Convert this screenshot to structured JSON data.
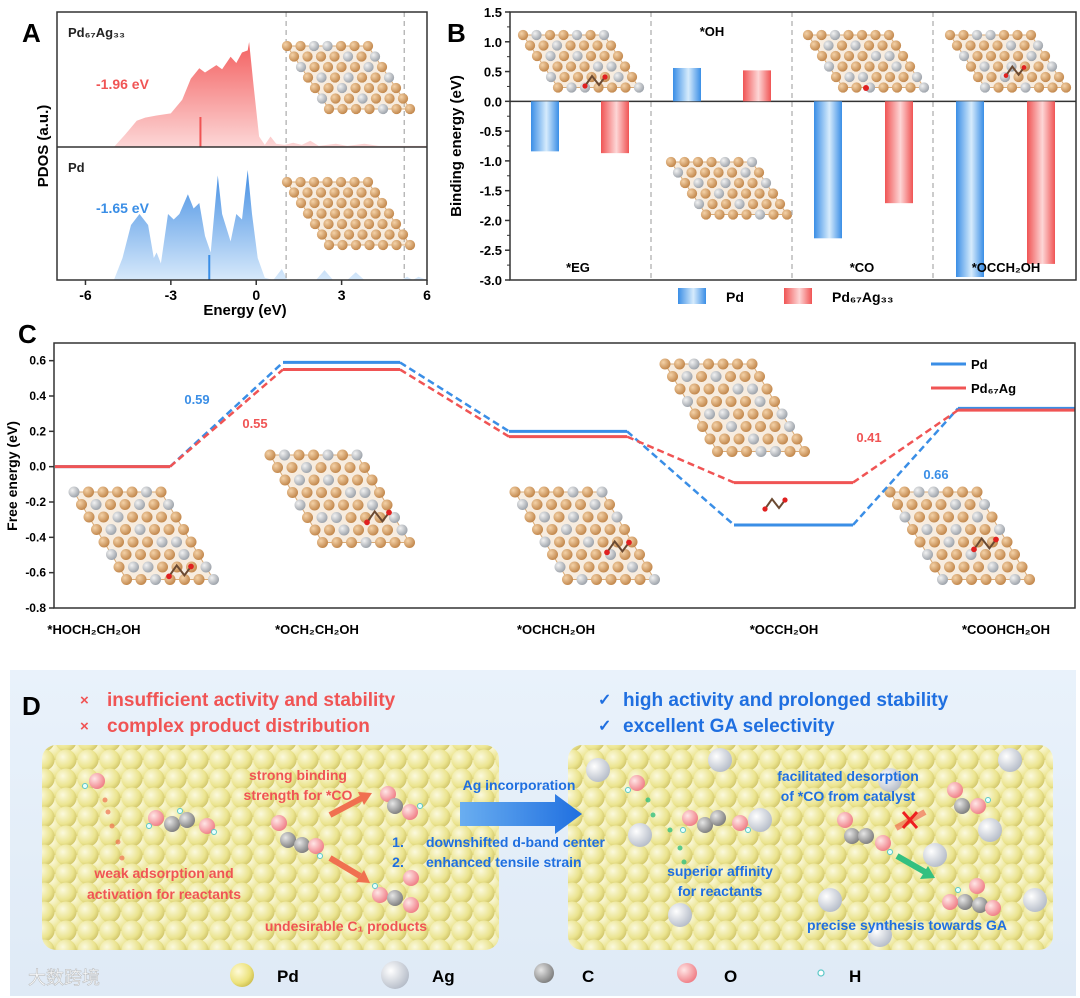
{
  "panel_labels": {
    "a": "A",
    "b": "B",
    "c": "C",
    "d": "D"
  },
  "chart_data": [
    {
      "panel": "A",
      "type": "area",
      "xlabel": "Energy (eV)",
      "ylabel": "PDOS (a.u.)",
      "xlim": [
        -7,
        6
      ],
      "xticks": [
        "-6",
        "-3",
        "0",
        "3",
        "6"
      ],
      "xtick_values": [
        -6,
        -3,
        0,
        3,
        6
      ],
      "dashed_lines": [
        1.05,
        5.2
      ],
      "series": [
        {
          "name": "Pd₆₇Ag₃₃",
          "color": "#f05454",
          "d_band_center": -1.96,
          "d_band_label": "-1.96 eV",
          "points": [
            [
              -5,
              0
            ],
            [
              -4.6,
              0.12
            ],
            [
              -4.2,
              0.25
            ],
            [
              -3.9,
              0.28
            ],
            [
              -3.5,
              0.3
            ],
            [
              -3,
              0.32
            ],
            [
              -2.6,
              0.45
            ],
            [
              -2.3,
              0.65
            ],
            [
              -2,
              0.75
            ],
            [
              -1.8,
              0.71
            ],
            [
              -1.4,
              0.78
            ],
            [
              -1.2,
              0.74
            ],
            [
              -0.9,
              0.86
            ],
            [
              -0.7,
              0.8
            ],
            [
              -0.5,
              0.9
            ],
            [
              -0.3,
              0.92
            ],
            [
              -0.25,
              1.0
            ],
            [
              -0.1,
              0.6
            ],
            [
              0.1,
              0.1
            ],
            [
              0.3,
              0.02
            ],
            [
              0.5,
              0.1
            ],
            [
              0.7,
              0.03
            ],
            [
              1.0,
              0.02
            ],
            [
              1.3,
              0.04
            ],
            [
              1.6,
              0.02
            ],
            [
              1.9,
              0.06
            ],
            [
              2.2,
              0.01
            ],
            [
              2.8,
              0.03
            ],
            [
              3.2,
              0.01
            ],
            [
              3.8,
              0.03
            ],
            [
              4.3,
              0.01
            ],
            [
              6,
              0.01
            ]
          ]
        },
        {
          "name": "Pd",
          "color": "#3a8ee6",
          "d_band_center": -1.65,
          "d_band_label": "-1.65 eV",
          "points": [
            [
              -5,
              0
            ],
            [
              -4.7,
              0.2
            ],
            [
              -4.4,
              0.5
            ],
            [
              -4.1,
              0.6
            ],
            [
              -3.8,
              0.5
            ],
            [
              -3.6,
              0.2
            ],
            [
              -3.5,
              0.25
            ],
            [
              -3.35,
              0.15
            ],
            [
              -3.1,
              0.6
            ],
            [
              -2.9,
              0.55
            ],
            [
              -2.7,
              0.6
            ],
            [
              -2.4,
              0.78
            ],
            [
              -2.2,
              0.65
            ],
            [
              -2.0,
              0.7
            ],
            [
              -1.8,
              0.4
            ],
            [
              -1.6,
              0.25
            ],
            [
              -1.35,
              0.95
            ],
            [
              -1.2,
              0.6
            ],
            [
              -0.9,
              0.35
            ],
            [
              -0.7,
              0.6
            ],
            [
              -0.5,
              0.55
            ],
            [
              -0.3,
              1.0
            ],
            [
              -0.15,
              0.6
            ],
            [
              0.05,
              0.2
            ],
            [
              0.3,
              0.02
            ],
            [
              0.6,
              0
            ],
            [
              0.9,
              0.1
            ],
            [
              1.1,
              0
            ],
            [
              2.1,
              0
            ],
            [
              2.4,
              0.09
            ],
            [
              2.7,
              0
            ],
            [
              3.2,
              0
            ],
            [
              3.5,
              0.07
            ],
            [
              3.8,
              0
            ],
            [
              5.1,
              0
            ],
            [
              5.3,
              0.03
            ],
            [
              5.5,
              0
            ],
            [
              5.7,
              0.03
            ],
            [
              6,
              0
            ]
          ]
        }
      ]
    },
    {
      "panel": "B",
      "type": "bar",
      "ylabel": "Binding energy (eV)",
      "ylim": [
        -3.0,
        1.5
      ],
      "yticks": [
        "1.5",
        "1.0",
        "0.5",
        "0.0",
        "-0.5",
        "-1.0",
        "-1.5",
        "-2.0",
        "-2.5",
        "-3.0"
      ],
      "ytick_values": [
        1.5,
        1.0,
        0.5,
        0.0,
        -0.5,
        -1.0,
        -1.5,
        -2.0,
        -2.5,
        -3.0
      ],
      "categories": [
        "*EG",
        "*OH",
        "*CO",
        "*OCCH₂OH"
      ],
      "legend": "bottom",
      "series": [
        {
          "name": "Pd",
          "color": "#3a8ee6",
          "values": [
            -0.84,
            0.56,
            -2.3,
            -2.95
          ]
        },
        {
          "name": "Pd₆₇Ag₃₃",
          "color": "#f05454",
          "values": [
            -0.87,
            0.52,
            -1.71,
            -2.73
          ]
        }
      ]
    },
    {
      "panel": "C",
      "type": "line",
      "ylabel": "Free energy (eV)",
      "ylim": [
        -0.8,
        0.7
      ],
      "yticks": [
        "0.6",
        "0.4",
        "0.2",
        "0.0",
        "-0.2",
        "-0.4",
        "-0.6",
        "-0.8"
      ],
      "ytick_values": [
        0.6,
        0.4,
        0.2,
        0.0,
        -0.2,
        -0.4,
        -0.6,
        -0.8
      ],
      "categories": [
        "*HOCH₂CH₂OH",
        "*OCH₂CH₂OH",
        "*OCHCH₂OH",
        "*OCCH₂OH",
        "*COOHCH₂OH"
      ],
      "legend": "top-right",
      "series": [
        {
          "name": "Pd",
          "color": "#3a8ee6",
          "values": [
            0.0,
            0.59,
            0.2,
            -0.33,
            0.33
          ]
        },
        {
          "name": "Pd₆₇Ag",
          "color": "#f05454",
          "values": [
            0.0,
            0.55,
            0.17,
            -0.09,
            0.32
          ]
        }
      ],
      "annotations": [
        {
          "text": "0.59",
          "series": "Pd",
          "step": 1
        },
        {
          "text": "0.55",
          "series": "Pd₆₇Ag",
          "step": 1
        },
        {
          "text": "0.41",
          "series": "Pd₆₇Ag",
          "step": 4
        },
        {
          "text": "0.66",
          "series": "Pd",
          "step": 4
        }
      ]
    }
  ],
  "schematic": {
    "left_points": [
      "insufficient activity and stability",
      "complex product distribution"
    ],
    "left_mark": "×",
    "right_points": [
      "high activity and prolonged stability",
      "excellent GA selectivity"
    ],
    "right_mark": "✓",
    "arrow_label": "Ag incorporation",
    "reasons": [
      {
        "num": "1.",
        "text": "downshifted d-band center"
      },
      {
        "num": "2.",
        "text": "enhanced tensile strain"
      }
    ],
    "left_labels": {
      "binding_1": "strong binding",
      "binding_2": "strength for *CO",
      "weak_1": "weak adsorption and",
      "weak_2": "activation for reactants",
      "undesirable": "undesirable C₁ products"
    },
    "right_labels": {
      "desorb_1": "facilitated desorption",
      "desorb_2": "of *CO from catalyst",
      "affinity_1": "superior affinity",
      "affinity_2": "for reactants",
      "precise": "precise synthesis towards GA"
    },
    "legend": [
      {
        "label": "Pd",
        "color": "#e8d85a"
      },
      {
        "label": "Ag",
        "color": "#c8d0da"
      },
      {
        "label": "C",
        "color": "#9a9a9a"
      },
      {
        "label": "O",
        "color": "#f4a0a4"
      },
      {
        "label": "H",
        "color": "#7fd8d8"
      }
    ]
  },
  "watermark": "大数跨境",
  "colors": {
    "pd": "#3a8ee6",
    "pdag": "#f05454",
    "cu_atom": "#d39a5e",
    "ag_atom": "#b8bec6"
  }
}
